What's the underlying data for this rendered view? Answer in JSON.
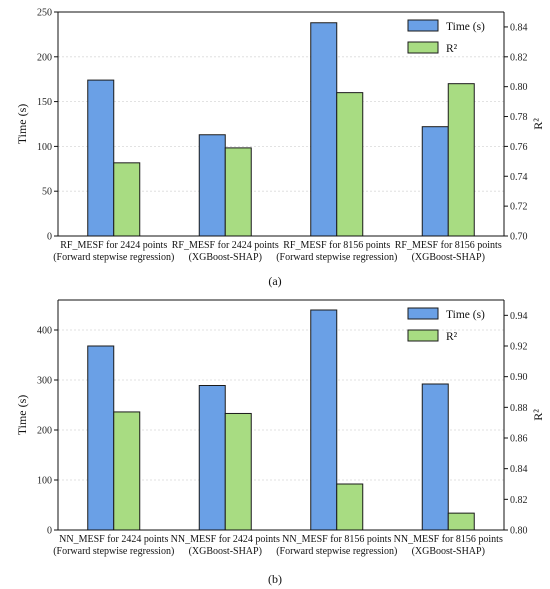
{
  "colors": {
    "time_bar": "#6aa0e6",
    "r2_bar": "#a8dc82",
    "bar_stroke": "#1a1a1a",
    "grid": "#d9d9d9"
  },
  "panels": [
    {
      "label": "(a)"
    },
    {
      "label": "(b)"
    }
  ],
  "chart_data": [
    {
      "type": "bar",
      "categories": [
        [
          "RF_MESF for 2424 points",
          "(Forward stepwise regression)"
        ],
        [
          "RF_MESF for 2424 points",
          "(XGBoost-SHAP)"
        ],
        [
          "RF_MESF for 8156 points",
          "(Forward stepwise regression)"
        ],
        [
          "RF_MESF for 8156 points",
          "(XGBoost-SHAP)"
        ]
      ],
      "series": [
        {
          "name": "Time (s)",
          "axis": "left",
          "values": [
            174,
            113,
            238,
            122
          ]
        },
        {
          "name": "R²",
          "axis": "right",
          "values": [
            0.749,
            0.759,
            0.796,
            0.802
          ]
        }
      ],
      "ylabel": "Time (s)",
      "ylim": [
        0,
        250
      ],
      "yticks": [
        0,
        50,
        100,
        150,
        200,
        250
      ],
      "y2label": "R²",
      "y2lim": [
        0.7,
        0.85
      ],
      "y2ticks": [
        "0.70",
        "0.72",
        "0.74",
        "0.76",
        "0.78",
        "0.80",
        "0.82",
        "0.84"
      ],
      "grid": true,
      "legend": "top-right"
    },
    {
      "type": "bar",
      "categories": [
        [
          "NN_MESF for 2424 points",
          "(Forward stepwise regression)"
        ],
        [
          "NN_MESF for 2424 points",
          "(XGBoost-SHAP)"
        ],
        [
          "NN_MESF for 8156 points",
          "(Forward stepwise regression)"
        ],
        [
          "NN_MESF for 8156 points",
          "(XGBoost-SHAP)"
        ]
      ],
      "series": [
        {
          "name": "Time (s)",
          "axis": "left",
          "values": [
            368,
            289,
            440,
            292
          ]
        },
        {
          "name": "R²",
          "axis": "right",
          "values": [
            0.877,
            0.876,
            0.83,
            0.811
          ]
        }
      ],
      "ylabel": "Time (s)",
      "ylim": [
        0,
        460
      ],
      "yticks": [
        0,
        100,
        200,
        300,
        400
      ],
      "y2label": "R²",
      "y2lim": [
        0.8,
        0.95
      ],
      "y2ticks": [
        "0.80",
        "0.82",
        "0.84",
        "0.86",
        "0.88",
        "0.90",
        "0.92",
        "0.94"
      ],
      "grid": true,
      "legend": "top-right"
    }
  ]
}
